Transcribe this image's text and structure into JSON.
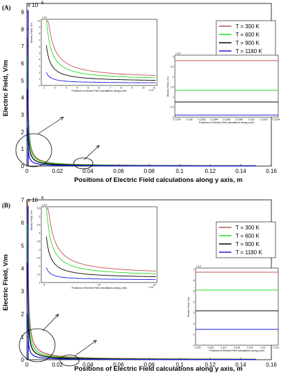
{
  "chart_data": [
    {
      "panel_label": "(A)",
      "type": "line",
      "xlabel": "Positions of Electric Field calculations along y axis, m",
      "ylabel": "Electric Field, V/m",
      "xlim": [
        0,
        0.16
      ],
      "ylim": [
        0,
        9500000
      ],
      "y_scale_label": "x 10",
      "y_scale_exp": "6",
      "x_ticks": [
        "0",
        "0.02",
        "0.04",
        "0.06",
        "0.08",
        "0.1",
        "0.12",
        "0.14",
        "0.16"
      ],
      "y_ticks": [
        "0",
        "1",
        "2",
        "3",
        "4",
        "5",
        "6",
        "7",
        "8",
        "9"
      ],
      "legend_position": "top-right",
      "series": [
        {
          "name": "T = 300 K",
          "color": "#c0504d",
          "coef": 3000,
          "floor": 3000
        },
        {
          "name": "T = 600 K",
          "color": "#22dd22",
          "coef": 2600,
          "floor": 2400
        },
        {
          "name": "T = 900 K",
          "color": "#000000",
          "coef": 1800,
          "floor": 1600
        },
        {
          "name": "T = 1180 K",
          "color": "#1a1adc",
          "coef": 900,
          "floor": 800
        }
      ],
      "inset_left": {
        "xlabel": "Positions of Electric Field calculations along y axis",
        "ylabel": "Electric Field, V/m",
        "y_scale": "x 10",
        "x_scale": "x 10",
        "x_ticks": [
          "1",
          "2",
          "3",
          "4",
          "5",
          "6",
          "7",
          "8",
          "9",
          "10",
          "11"
        ],
        "y_ticks": [
          "0",
          "1",
          "2",
          "3",
          "4",
          "5",
          "6",
          "7",
          "8",
          "9",
          "10"
        ]
      },
      "inset_right": {
        "xlabel": "Positions of Electric Field calculations along y axis",
        "ylabel": "Electric Field, V/m",
        "y_scale": "x 10",
        "x_ticks": [
          "0.1278",
          "0.128",
          "0.1282",
          "0.1284",
          "0.1286",
          "0.1288",
          "0.129",
          "0.1292",
          "0.1294"
        ],
        "y_ticks": [
          "0",
          "0.5",
          "1",
          "1.5",
          "2",
          "2.5",
          "3"
        ]
      }
    },
    {
      "panel_label": "(B)",
      "type": "line",
      "xlabel": "Positions of Electric Field calculations along y axis, m",
      "ylabel": "Electric Field, V/m",
      "xlim": [
        0,
        0.16
      ],
      "ylim": [
        0,
        7000000
      ],
      "y_scale_label": "x 10",
      "y_scale_exp": "6",
      "x_ticks": [
        "0",
        "0.02",
        "0.04",
        "0.06",
        "0.08",
        "0.1",
        "0.12",
        "0.14",
        "0.16"
      ],
      "y_ticks": [
        "0",
        "1",
        "2",
        "3",
        "4",
        "5",
        "6",
        "7"
      ],
      "legend_position": "top-right",
      "series": [
        {
          "name": "T = 300 K",
          "color": "#c0504d",
          "coef": 3300,
          "floor": 3300
        },
        {
          "name": "T = 600 K",
          "color": "#22dd22",
          "coef": 2400,
          "floor": 2200
        },
        {
          "name": "T = 900 K",
          "color": "#000000",
          "coef": 1700,
          "floor": 1500
        },
        {
          "name": "T = 1180 K",
          "color": "#1a1adc",
          "coef": 800,
          "floor": 700
        }
      ],
      "inset_left": {
        "xlabel": "Positions of Electric Field calculations along y axis",
        "ylabel": "Electric Field, V/m",
        "y_scale": "x 10",
        "x_scale": "x 10",
        "x_ticks": [
          "5",
          "10",
          "15"
        ],
        "y_ticks": [
          "1",
          "1.5",
          "2",
          "2.5",
          "3",
          "3.5",
          "4",
          "4.5",
          "5",
          "5.5"
        ]
      },
      "inset_right": {
        "xlabel": "Positions of Electric Field calculations along y axis",
        "ylabel": "Electric Field, V/m",
        "y_scale": "x 10",
        "x_ticks": [
          "0.115",
          "0.116",
          "0.117",
          "0.118",
          "0.119",
          "0.12",
          "0.121"
        ],
        "y_ticks": [
          "0",
          "1",
          "2",
          "3",
          "4",
          "5",
          "6",
          "7"
        ]
      }
    }
  ]
}
